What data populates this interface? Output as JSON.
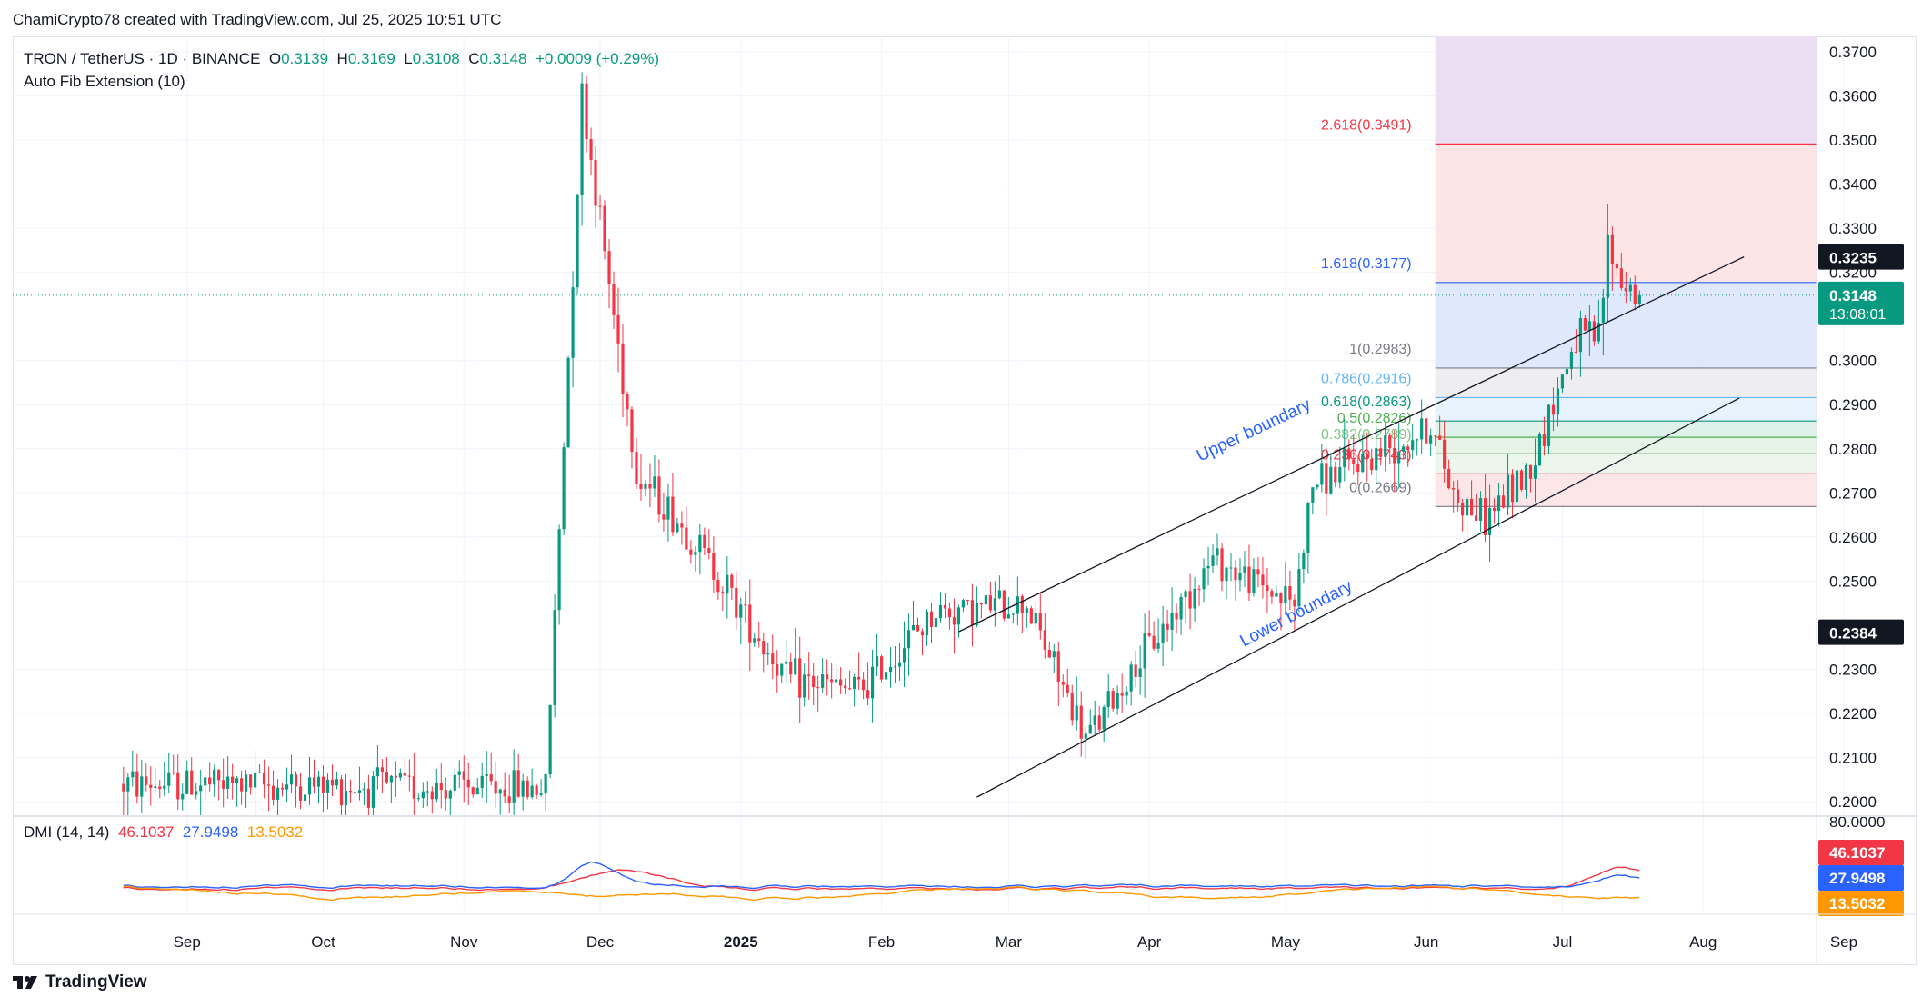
{
  "header": {
    "attribution": "ChamiCrypto78 created with TradingView.com, Jul 25, 2025 10:51 UTC"
  },
  "legend": {
    "symbol": "TRON / TetherUS · 1D · BINANCE",
    "open_label": "O",
    "open": "0.3139",
    "high_label": "H",
    "high": "0.3169",
    "low_label": "L",
    "low": "0.3108",
    "close_label": "C",
    "close": "0.3148",
    "change": "+0.0009 (+0.29%)",
    "indicator": "Auto Fib Extension (10)"
  },
  "dmi": {
    "label": "DMI (14, 14)",
    "plus_di": "46.1037",
    "adx": "27.9498",
    "minus_di": "13.5032",
    "scale_top": "80.0000",
    "colors": {
      "plus_di": "#f23645",
      "adx": "#2962ff",
      "minus_di": "#ff9800"
    }
  },
  "price_badges": [
    {
      "value": "0.3235",
      "bg": "#131722"
    },
    {
      "value": "0.3148",
      "sub": "13:08:01",
      "bg": "#089981"
    },
    {
      "value": "0.2384",
      "bg": "#131722"
    }
  ],
  "annotations": {
    "upper": "Upper boundary",
    "lower": "Lower boundary"
  },
  "brand": "TradingView",
  "colors": {
    "up": "#089981",
    "down": "#f23645",
    "channel": "#131722",
    "annotation": "#2962ff"
  },
  "chart_data": {
    "type": "candlestick",
    "x_axis_labels": [
      "Sep",
      "Oct",
      "Nov",
      "Dec",
      "2025",
      "Feb",
      "Mar",
      "Apr",
      "May",
      "Jun",
      "Jul",
      "Aug",
      "Sep"
    ],
    "y_ticks": [
      "0.3700",
      "0.3600",
      "0.3500",
      "0.3400",
      "0.3300",
      "0.3200",
      "0.3000",
      "0.2900",
      "0.2800",
      "0.2700",
      "0.2600",
      "0.2500",
      "0.2300",
      "0.2200",
      "0.2100",
      "0.2000"
    ],
    "ylim": [
      0.1967,
      0.3735
    ],
    "current_price": 0.3148,
    "fib_levels": [
      {
        "ratio": "2.618",
        "price": 0.3491,
        "label": "2.618(0.3491)",
        "color": "#f23645",
        "fill": "#fde2e3"
      },
      {
        "ratio": "1.618",
        "price": 0.3177,
        "label": "1.618(0.3177)",
        "color": "#2962ff",
        "fill": "#dbe6fd"
      },
      {
        "ratio": "1",
        "price": 0.2983,
        "label": "1(0.2983)",
        "color": "#787b86",
        "fill": "#ececef"
      },
      {
        "ratio": "0.786",
        "price": 0.2916,
        "label": "0.786(0.2916)",
        "color": "#64b5f6",
        "fill": "#e3f1fc"
      },
      {
        "ratio": "0.618",
        "price": 0.2863,
        "label": "0.618(0.2863)",
        "color": "#089981",
        "fill": "#dcefe9"
      },
      {
        "ratio": "0.5",
        "price": 0.2826,
        "label": "0.5(0.2826)",
        "color": "#4caf50",
        "fill": "#e3f2e3"
      },
      {
        "ratio": "0.382",
        "price": 0.2789,
        "label": "0.382(0.2789)",
        "color": "#81c784",
        "fill": "#eaf5ea"
      },
      {
        "ratio": "0.236",
        "price": 0.2743,
        "label": "0.236(0.2743)",
        "color": "#f23645",
        "fill": "#fce3e4"
      },
      {
        "ratio": "0",
        "price": 0.2669,
        "label": "0(0.2669)",
        "color": "#787b86",
        "fill": ""
      }
    ],
    "fib_extreme_fill": "#ecdff3",
    "channel": {
      "upper": [
        [
          "2025-02-25",
          0.2385
        ],
        [
          "2025-08-17",
          0.3235
        ]
      ],
      "lower": [
        [
          "2025-03-01",
          0.201
        ],
        [
          "2025-08-16",
          0.2915
        ]
      ]
    },
    "key_points": [
      [
        "2024-08-25",
        0.204
      ],
      [
        "2024-11-26",
        0.203
      ],
      [
        "2024-12-04",
        0.36
      ],
      [
        "2024-12-16",
        0.275
      ],
      [
        "2024-12-31",
        0.256
      ],
      [
        "2025-01-18",
        0.228
      ],
      [
        "2025-02-03",
        0.225
      ],
      [
        "2025-02-20",
        0.243
      ],
      [
        "2025-03-12",
        0.245
      ],
      [
        "2025-03-25",
        0.214
      ],
      [
        "2025-04-08",
        0.235
      ],
      [
        "2025-04-22",
        0.255
      ],
      [
        "2025-05-10",
        0.245
      ],
      [
        "2025-05-14",
        0.272
      ],
      [
        "2025-06-09",
        0.285
      ],
      [
        "2025-06-14",
        0.27
      ],
      [
        "2025-06-21",
        0.264
      ],
      [
        "2025-07-01",
        0.276
      ],
      [
        "2025-07-11",
        0.305
      ],
      [
        "2025-07-16",
        0.305
      ],
      [
        "2025-07-18",
        0.326
      ],
      [
        "2025-07-21",
        0.318
      ],
      [
        "2025-07-25",
        0.3148
      ]
    ],
    "dmi_series": [
      {
        "name": "DMI (14, 14)",
        "values": [
          46.1037,
          27.9498,
          13.5032
        ]
      }
    ]
  }
}
